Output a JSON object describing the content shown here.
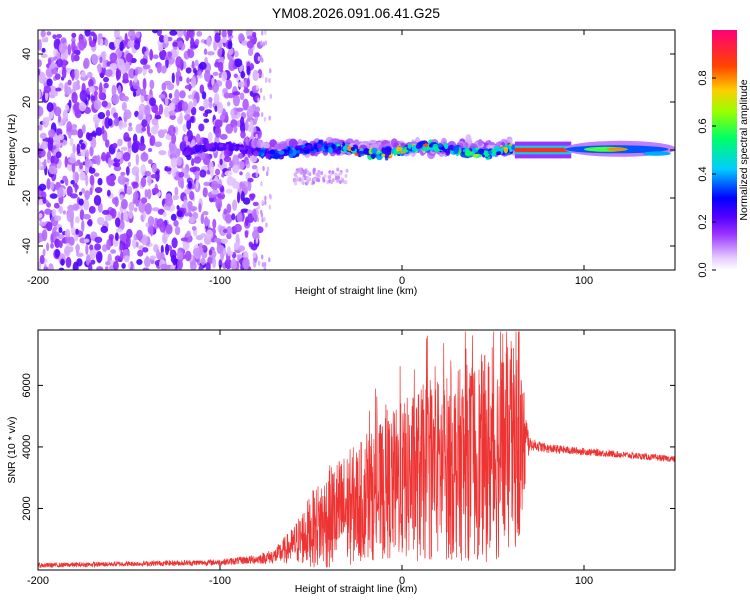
{
  "title": "YM08.2026.091.06.41.G25",
  "chart_data": [
    {
      "type": "heatmap",
      "title": "YM08.2026.091.06.41.G25",
      "xlabel": "Height of straight line (km)",
      "ylabel": "Frequency (Hz)",
      "xlim": [
        -200,
        150
      ],
      "ylim": [
        -50,
        50
      ],
      "x_ticks": [
        -200,
        -100,
        0,
        100
      ],
      "y_ticks": [
        -40,
        -20,
        0,
        20,
        40
      ],
      "colorbar": {
        "label": "Normalized spectral amplitude",
        "range": [
          0,
          1
        ],
        "ticks": [
          "0.0",
          "0.2",
          "0.4",
          "0.6",
          "0.8"
        ],
        "colors": [
          "#ffffff",
          "#cc99ff",
          "#6600ff",
          "#0000ff",
          "#00ccff",
          "#00ff66",
          "#ccff00",
          "#ff9900",
          "#ff0000",
          "#ff0066"
        ]
      },
      "band": {
        "noise_region_km": [
          -200,
          -78
        ],
        "noise_amplitude": "0.1-0.3",
        "signal_center_freq_hz": 0,
        "signal_region_km": [
          -78,
          150
        ],
        "strong_line_km": [
          62,
          93
        ],
        "strong_line_amplitude": 0.9,
        "second_peak_km": [
          100,
          130
        ],
        "second_peak_amplitude": 0.8
      }
    },
    {
      "type": "line",
      "xlabel": "Height of straight line (km)",
      "ylabel": "SNR (10 * v/v)",
      "xlim": [
        -200,
        150
      ],
      "ylim": [
        0,
        7800
      ],
      "x_ticks": [
        -200,
        -100,
        0,
        100
      ],
      "y_ticks": [
        2000,
        4000,
        6000
      ],
      "line_color": "#ee3333",
      "envelope": {
        "x": [
          -200,
          -150,
          -100,
          -80,
          -70,
          -60,
          -50,
          -40,
          -30,
          -20,
          -10,
          0,
          10,
          20,
          30,
          40,
          50,
          60,
          65,
          70,
          80,
          100,
          120,
          150
        ],
        "y": [
          150,
          200,
          250,
          350,
          450,
          800,
          1300,
          1700,
          2000,
          2300,
          2600,
          2900,
          3100,
          3300,
          3400,
          3600,
          3700,
          3900,
          4000,
          4100,
          3950,
          3850,
          3750,
          3600
        ],
        "noise_amplitude": [
          80,
          80,
          100,
          150,
          250,
          600,
          1200,
          1700,
          1900,
          2000,
          2300,
          2600,
          2900,
          3000,
          3100,
          3300,
          3500,
          3400,
          3200,
          200,
          150,
          120,
          110,
          100
        ],
        "max_y": 7750
      }
    }
  ]
}
